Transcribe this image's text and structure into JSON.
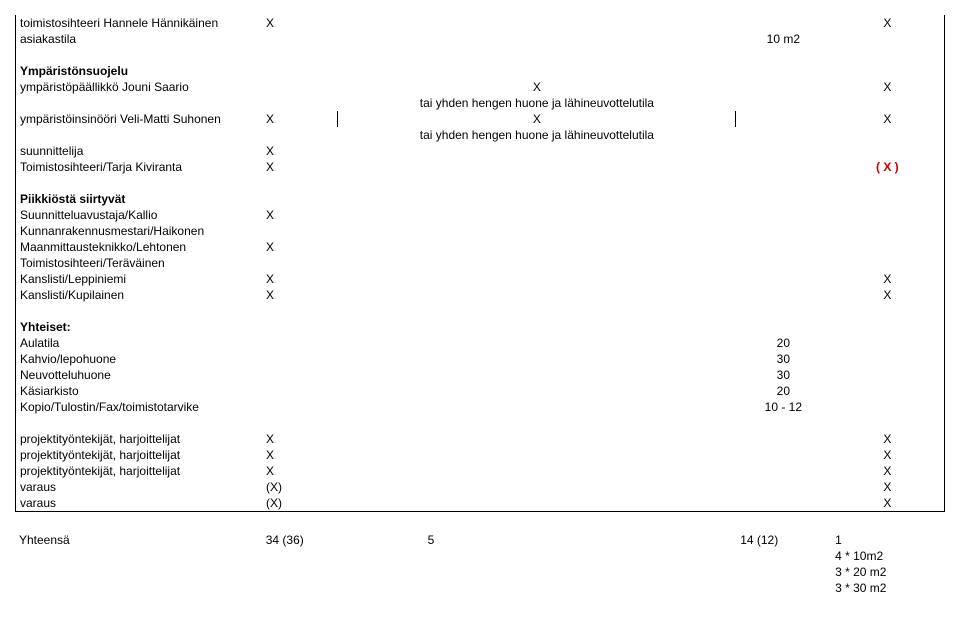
{
  "rows": [
    {
      "label": "toimistosihteeri Hannele Hännikäinen",
      "x1": "X",
      "mid": "",
      "x2": "",
      "last": "X",
      "vlines": true,
      "bold": false
    },
    {
      "label": "asiakastila",
      "x1": "",
      "mid": "",
      "x2": "10 m2",
      "last": "",
      "vlines": true,
      "bold": false,
      "spacer_after": true
    },
    {
      "label": "Ympäristönsuojelu",
      "x1": "",
      "mid": "",
      "x2": "",
      "last": "",
      "vlines": true,
      "bold": true
    },
    {
      "label": "ympäristöpäällikkö Jouni Saario",
      "x1": "",
      "mid": "X",
      "x2": "",
      "last": "X",
      "vlines": true
    },
    {
      "label": "",
      "x1": "",
      "mid": "tai yhden hengen huone ja lähineuvottelutila",
      "x2": "",
      "last": "",
      "vlines": true
    },
    {
      "label": "ympäristöinsinööri Veli-Matti Suhonen",
      "x1": "X",
      "mid": "X",
      "x2": "",
      "last": "X",
      "vlines": true,
      "inner_vlines": true
    },
    {
      "label": "",
      "x1": "",
      "mid": "tai yhden hengen huone ja lähineuvottelutila",
      "x2": "",
      "last": "",
      "vlines": true
    },
    {
      "label": "suunnittelija",
      "x1": "X",
      "mid": "",
      "x2": "",
      "last": "",
      "vlines": true
    },
    {
      "label": "Toimistosihteeri/Tarja Kiviranta",
      "x1": "X",
      "mid": "",
      "x2": "",
      "last": "( X )",
      "vlines": true,
      "last_red": true,
      "spacer_after": true
    },
    {
      "label": "Piikkiöstä siirtyvät",
      "x1": "",
      "mid": "",
      "x2": "",
      "last": "",
      "vlines": true,
      "bold": true
    },
    {
      "label": "Suunnitteluavustaja/Kallio",
      "x1": "X",
      "mid": "",
      "x2": "",
      "last": "",
      "vlines": true
    },
    {
      "label": "Kunnanrakennusmestari/Haikonen",
      "x1": "",
      "mid": "",
      "x2": "",
      "last": "",
      "vlines": true
    },
    {
      "label": "Maanmittausteknikko/Lehtonen",
      "x1": "X",
      "mid": "",
      "x2": "",
      "last": "",
      "vlines": true
    },
    {
      "label": "Toimistosihteeri/Teräväinen",
      "x1": "",
      "mid": "",
      "x2": "",
      "last": "",
      "vlines": true
    },
    {
      "label": "Kanslisti/Leppiniemi",
      "x1": "X",
      "mid": "",
      "x2": "",
      "last": "X",
      "vlines": true
    },
    {
      "label": "Kanslisti/Kupilainen",
      "x1": "X",
      "mid": "",
      "x2": "",
      "last": "X",
      "vlines": true,
      "spacer_after": true
    },
    {
      "label": "Yhteiset:",
      "x1": "",
      "mid": "",
      "x2": "",
      "last": "",
      "vlines": true,
      "bold": true
    },
    {
      "label": "Aulatila",
      "x1": "",
      "mid": "",
      "x2": "20",
      "last": "",
      "vlines": true
    },
    {
      "label": "Kahvio/lepohuone",
      "x1": "",
      "mid": "",
      "x2": "30",
      "last": "",
      "vlines": true
    },
    {
      "label": "Neuvotteluhuone",
      "x1": "",
      "mid": "",
      "x2": "30",
      "last": "",
      "vlines": true
    },
    {
      "label": "Käsiarkisto",
      "x1": "",
      "mid": "",
      "x2": "20",
      "last": "",
      "vlines": true
    },
    {
      "label": "Kopio/Tulostin/Fax/toimistotarvike",
      "x1": "",
      "mid": "",
      "x2": "10 - 12",
      "last": "",
      "vlines": true,
      "spacer_after": true
    },
    {
      "label": "projektityöntekijät, harjoittelijat",
      "x1": "X",
      "mid": "",
      "x2": "",
      "last": "X",
      "vlines": true
    },
    {
      "label": "projektityöntekijät, harjoittelijat",
      "x1": "X",
      "mid": "",
      "x2": "",
      "last": "X",
      "vlines": true
    },
    {
      "label": "projektityöntekijät, harjoittelijat",
      "x1": "X",
      "mid": "",
      "x2": "",
      "last": "X",
      "vlines": true
    },
    {
      "label": "varaus",
      "x1": "(X)",
      "mid": "",
      "x2": "",
      "last": "X",
      "vlines": true
    },
    {
      "label": "varaus",
      "x1": "(X)",
      "mid": "",
      "x2": "",
      "last": "X",
      "vlines": true,
      "bottom_border": true,
      "spacer_after": true
    }
  ],
  "totals": {
    "label": "Yhteensä",
    "c1": "34 (36)",
    "c2": "5",
    "c3": "14 (12)",
    "c4": "1",
    "sublines": [
      "4 * 10m2",
      "3 * 20 m2",
      "3 * 30 m2"
    ]
  }
}
